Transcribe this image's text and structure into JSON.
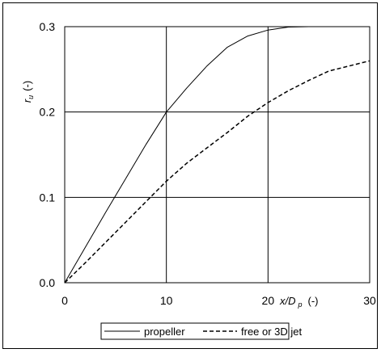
{
  "chart_data": {
    "type": "line",
    "title": "",
    "xlabel": "x/D",
    "xlabel_sub": "p",
    "xlabel_unit": "(-)",
    "ylabel": "r",
    "ylabel_sub": "u",
    "ylabel_unit": "(-)",
    "xlim": [
      0,
      30
    ],
    "ylim": [
      0.0,
      0.3
    ],
    "x_ticks": [
      0,
      10,
      20,
      30
    ],
    "x_tick_labels": [
      "0",
      "10",
      "20",
      "30"
    ],
    "y_ticks": [
      0.0,
      0.1,
      0.2,
      0.3
    ],
    "y_tick_labels": [
      "0.0",
      "0.1",
      "0.2",
      "0.3"
    ],
    "grid": true,
    "legend_position": "bottom",
    "series": [
      {
        "name": "propeller",
        "style": "solid",
        "color": "#000000",
        "points": [
          [
            0,
            0
          ],
          [
            2,
            0.041
          ],
          [
            4,
            0.082
          ],
          [
            6,
            0.122
          ],
          [
            8,
            0.162
          ],
          [
            10,
            0.2
          ],
          [
            12,
            0.228
          ],
          [
            14,
            0.254
          ],
          [
            16,
            0.276
          ],
          [
            18,
            0.289
          ],
          [
            20,
            0.296
          ],
          [
            22,
            0.2995
          ],
          [
            24,
            0.3
          ],
          [
            26,
            0.3
          ],
          [
            28,
            0.3
          ],
          [
            30,
            0.3
          ]
        ]
      },
      {
        "name": "free or 3D jet",
        "style": "dashed",
        "color": "#000000",
        "points": [
          [
            0,
            0
          ],
          [
            2,
            0.023
          ],
          [
            4,
            0.047
          ],
          [
            6,
            0.071
          ],
          [
            8,
            0.095
          ],
          [
            10,
            0.119
          ],
          [
            12,
            0.14
          ],
          [
            14,
            0.158
          ],
          [
            16,
            0.176
          ],
          [
            18,
            0.195
          ],
          [
            20,
            0.211
          ],
          [
            22,
            0.225
          ],
          [
            24,
            0.237
          ],
          [
            26,
            0.248
          ],
          [
            28,
            0.254
          ],
          [
            30,
            0.26
          ]
        ]
      }
    ]
  }
}
